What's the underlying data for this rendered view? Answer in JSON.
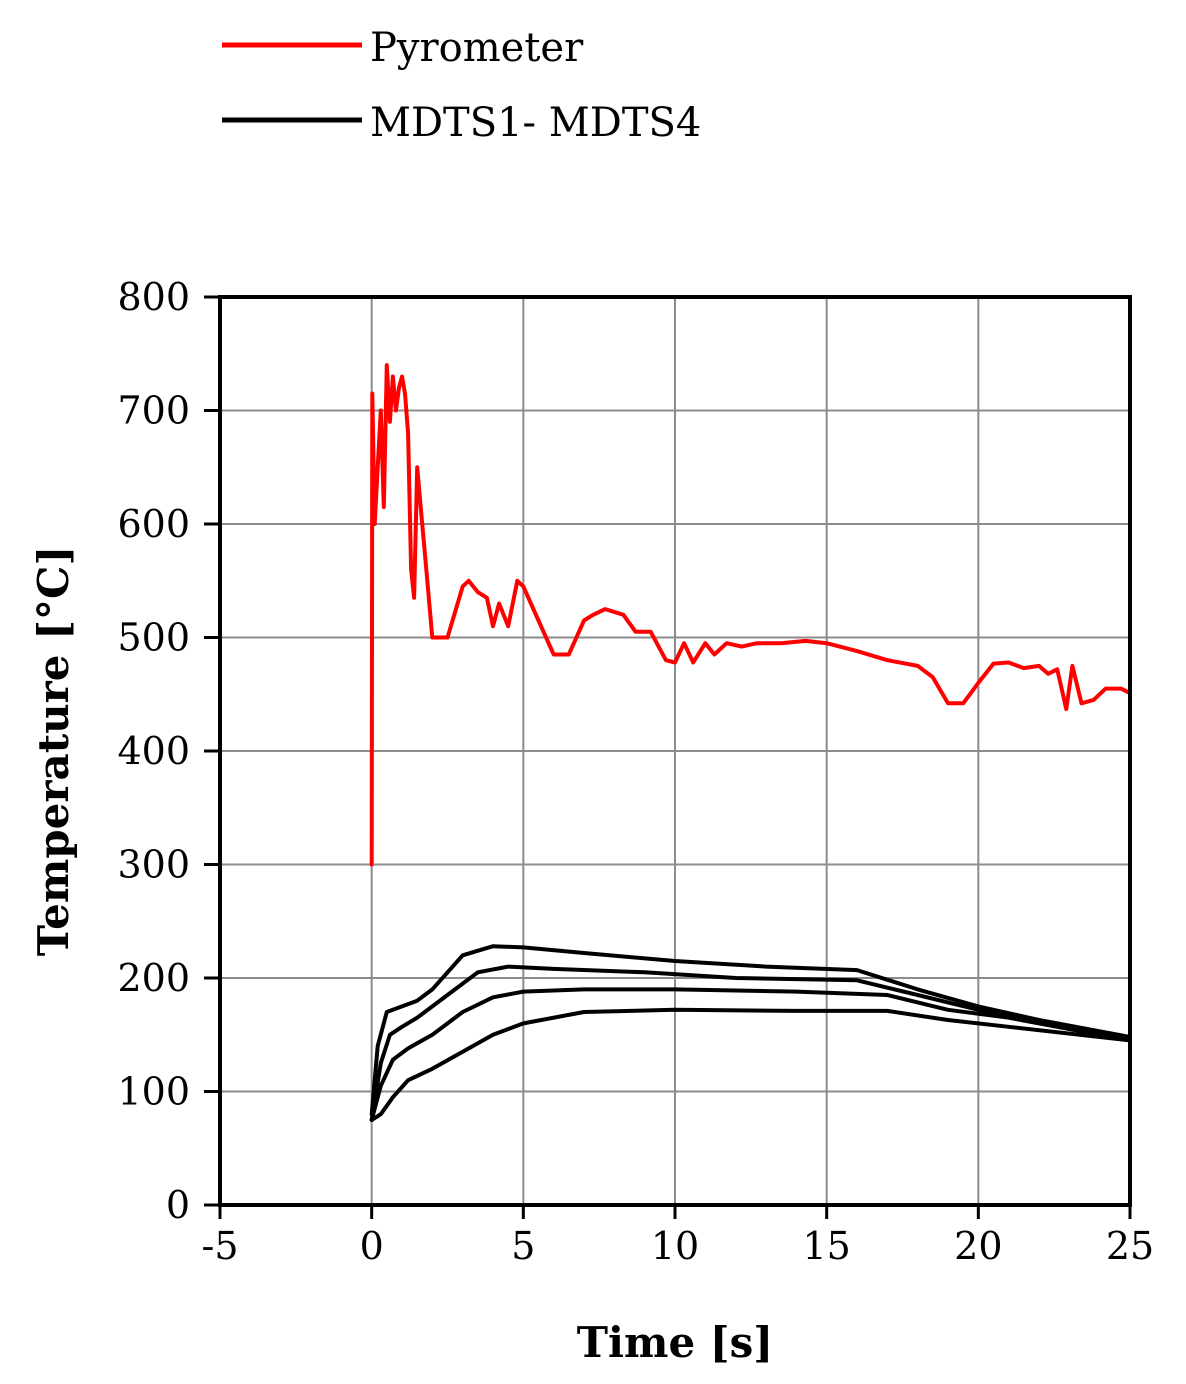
{
  "chart_data": {
    "type": "line",
    "title": "",
    "xlabel": "Time [s]",
    "ylabel": "Temperature [°C]",
    "xlim": [
      -5,
      25
    ],
    "ylim": [
      0,
      800
    ],
    "xticks": [
      -5,
      0,
      5,
      10,
      15,
      20,
      25
    ],
    "yticks": [
      0,
      100,
      200,
      300,
      400,
      500,
      600,
      700,
      800
    ],
    "grid": true,
    "legend_position": "top-left, above plot",
    "legend": [
      {
        "label": "Pyrometer",
        "color": "#ff0000"
      },
      {
        "label": "MDTS1- MDTS4",
        "color": "#000000"
      }
    ],
    "series": [
      {
        "name": "Pyrometer",
        "color": "#ff0000",
        "points": [
          [
            0,
            300
          ],
          [
            0.02,
            715
          ],
          [
            0.1,
            600
          ],
          [
            0.2,
            650
          ],
          [
            0.3,
            700
          ],
          [
            0.4,
            615
          ],
          [
            0.5,
            740
          ],
          [
            0.6,
            690
          ],
          [
            0.7,
            730
          ],
          [
            0.8,
            700
          ],
          [
            0.9,
            720
          ],
          [
            1.0,
            730
          ],
          [
            1.1,
            715
          ],
          [
            1.2,
            680
          ],
          [
            1.3,
            560
          ],
          [
            1.4,
            535
          ],
          [
            1.5,
            650
          ],
          [
            1.6,
            620
          ],
          [
            1.8,
            560
          ],
          [
            2.0,
            500
          ],
          [
            2.5,
            500
          ],
          [
            3.0,
            545
          ],
          [
            3.2,
            550
          ],
          [
            3.5,
            540
          ],
          [
            3.8,
            535
          ],
          [
            4.0,
            510
          ],
          [
            4.2,
            530
          ],
          [
            4.5,
            510
          ],
          [
            4.8,
            550
          ],
          [
            5.0,
            545
          ],
          [
            5.5,
            515
          ],
          [
            6.0,
            485
          ],
          [
            6.5,
            485
          ],
          [
            7.0,
            515
          ],
          [
            7.3,
            520
          ],
          [
            7.7,
            525
          ],
          [
            8.3,
            520
          ],
          [
            8.7,
            505
          ],
          [
            9.2,
            505
          ],
          [
            9.7,
            480
          ],
          [
            10.0,
            478
          ],
          [
            10.3,
            495
          ],
          [
            10.6,
            478
          ],
          [
            11.0,
            495
          ],
          [
            11.3,
            485
          ],
          [
            11.7,
            495
          ],
          [
            12.2,
            492
          ],
          [
            12.7,
            495
          ],
          [
            13.5,
            495
          ],
          [
            14.3,
            497
          ],
          [
            15.0,
            495
          ],
          [
            16.0,
            488
          ],
          [
            17.0,
            480
          ],
          [
            18.0,
            475
          ],
          [
            18.5,
            465
          ],
          [
            19.0,
            442
          ],
          [
            19.5,
            442
          ],
          [
            20.0,
            460
          ],
          [
            20.5,
            477
          ],
          [
            21.0,
            478
          ],
          [
            21.5,
            473
          ],
          [
            22.0,
            475
          ],
          [
            22.3,
            468
          ],
          [
            22.6,
            472
          ],
          [
            22.9,
            437
          ],
          [
            23.1,
            475
          ],
          [
            23.4,
            442
          ],
          [
            23.8,
            445
          ],
          [
            24.2,
            455
          ],
          [
            24.7,
            455
          ],
          [
            25.0,
            451
          ]
        ]
      },
      {
        "name": "",
        "color": "#000000",
        "points": [
          [
            0,
            80
          ],
          [
            0.2,
            140
          ],
          [
            0.5,
            170
          ],
          [
            1.0,
            175
          ],
          [
            1.5,
            180
          ],
          [
            2.0,
            190
          ],
          [
            3.0,
            220
          ],
          [
            4.0,
            228
          ],
          [
            5.0,
            227
          ],
          [
            7.0,
            222
          ],
          [
            10.0,
            215
          ],
          [
            13.0,
            210
          ],
          [
            16.0,
            207
          ],
          [
            18.0,
            190
          ],
          [
            20.0,
            175
          ],
          [
            22.0,
            163
          ],
          [
            25.0,
            148
          ]
        ]
      },
      {
        "name": "",
        "color": "#000000",
        "points": [
          [
            0,
            75
          ],
          [
            0.3,
            125
          ],
          [
            0.6,
            150
          ],
          [
            1.0,
            157
          ],
          [
            1.5,
            165
          ],
          [
            2.5,
            185
          ],
          [
            3.5,
            205
          ],
          [
            4.5,
            210
          ],
          [
            6.0,
            208
          ],
          [
            9.0,
            205
          ],
          [
            12.0,
            200
          ],
          [
            16.0,
            198
          ],
          [
            18.0,
            185
          ],
          [
            20.0,
            172
          ],
          [
            22.0,
            162
          ],
          [
            25.0,
            147
          ]
        ]
      },
      {
        "name": "",
        "color": "#000000",
        "points": [
          [
            0,
            75
          ],
          [
            0.3,
            105
          ],
          [
            0.7,
            128
          ],
          [
            1.2,
            138
          ],
          [
            2.0,
            150
          ],
          [
            3.0,
            170
          ],
          [
            4.0,
            183
          ],
          [
            5.0,
            188
          ],
          [
            7.0,
            190
          ],
          [
            10.0,
            190
          ],
          [
            14.0,
            188
          ],
          [
            17.0,
            185
          ],
          [
            19.0,
            172
          ],
          [
            21.0,
            165
          ],
          [
            25.0,
            145
          ]
        ]
      },
      {
        "name": "",
        "color": "#000000",
        "points": [
          [
            0,
            75
          ],
          [
            0.3,
            80
          ],
          [
            0.7,
            95
          ],
          [
            1.2,
            110
          ],
          [
            2.0,
            120
          ],
          [
            3.0,
            135
          ],
          [
            4.0,
            150
          ],
          [
            5.0,
            160
          ],
          [
            7.0,
            170
          ],
          [
            10.0,
            172
          ],
          [
            14.0,
            171
          ],
          [
            17.0,
            171
          ],
          [
            19.0,
            163
          ],
          [
            21.0,
            157
          ],
          [
            25.0,
            145
          ]
        ]
      }
    ]
  }
}
